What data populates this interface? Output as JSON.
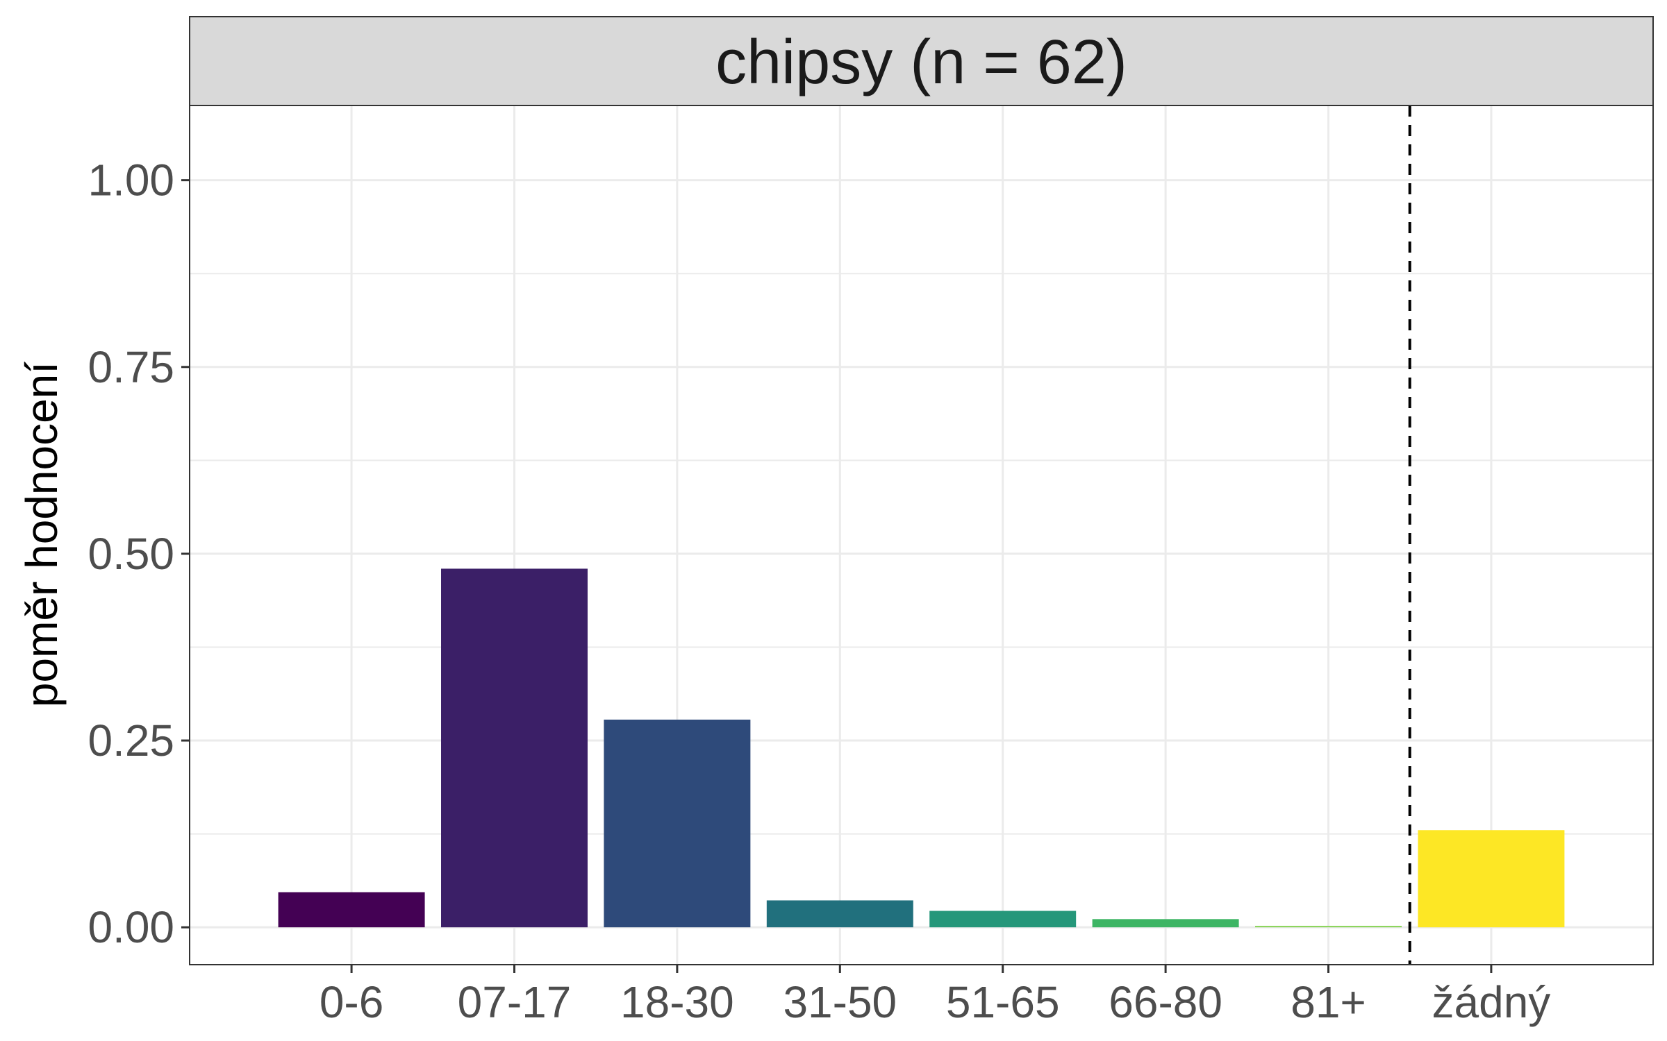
{
  "chart_data": {
    "type": "bar",
    "facet_title": "chipsy (n = 62)",
    "ylabel": "poměr hodnocení",
    "xlabel": "",
    "categories": [
      "0-6",
      "07-17",
      "18-30",
      "31-50",
      "51-65",
      "66-80",
      "81+",
      "žádný"
    ],
    "values": [
      0.047,
      0.48,
      0.278,
      0.036,
      0.022,
      0.011,
      0.002,
      0.13
    ],
    "colors": [
      "#440154",
      "#3B1F67",
      "#2E4A7A",
      "#21707D",
      "#25977A",
      "#3DB564",
      "#8CD55D",
      "#FDE725"
    ],
    "yticks": [
      0.0,
      0.25,
      0.5,
      0.75,
      1.0
    ],
    "ytick_labels": [
      "0.00",
      "0.25",
      "0.50",
      "0.75",
      "1.00"
    ],
    "ylim": [
      -0.05,
      1.1
    ],
    "reference_line": {
      "style": "dashed",
      "between": [
        "81+",
        "žádný"
      ]
    },
    "grid": true,
    "legend": "none"
  }
}
